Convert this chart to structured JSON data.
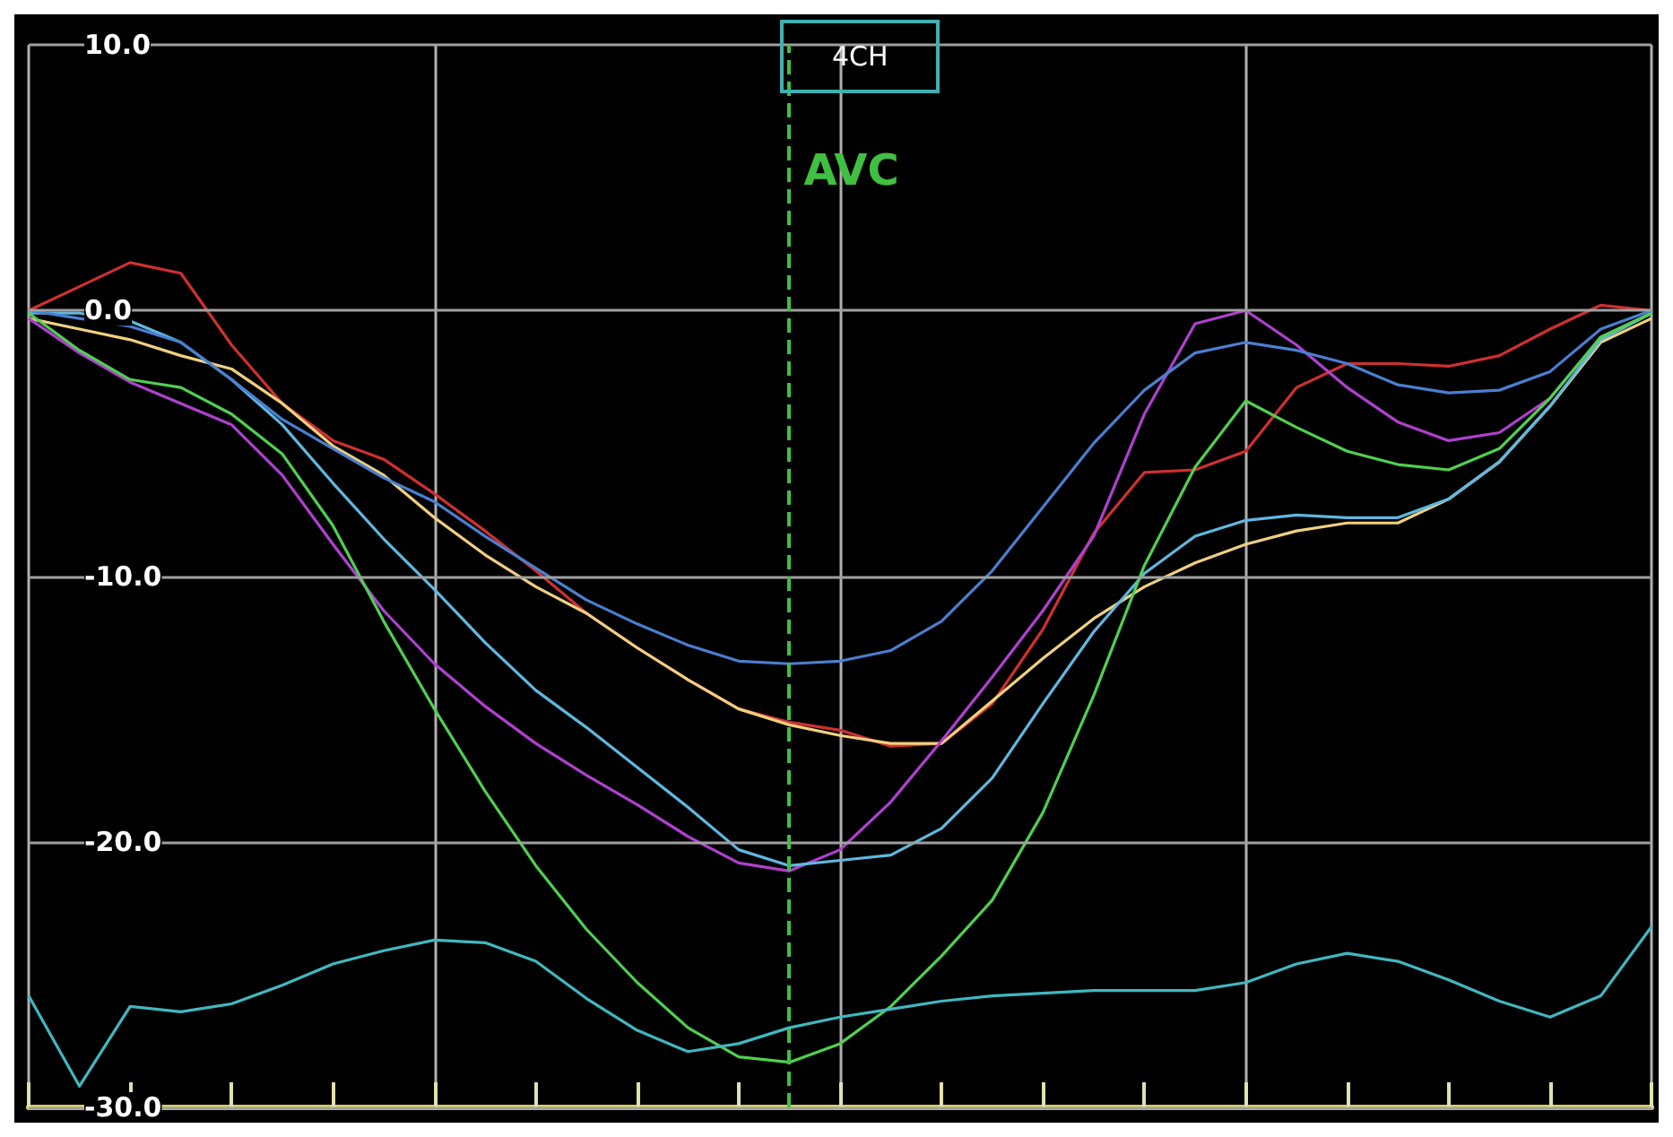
{
  "chart_data": {
    "type": "line",
    "title": "4CH",
    "categories": [
      null,
      null,
      null,
      null,
      null,
      null,
      null,
      null,
      null,
      null,
      null,
      null,
      null,
      null,
      null,
      null,
      null,
      null,
      null,
      null,
      null,
      null,
      null,
      null,
      null,
      null,
      null,
      null,
      null,
      null,
      null,
      null,
      null
    ],
    "ylim": [
      -30,
      10
    ],
    "yticks": [
      {
        "value": -30,
        "label": "-30.0"
      },
      {
        "value": -20,
        "label": "-20.0"
      },
      {
        "value": -10,
        "label": "-10.0"
      },
      {
        "value": 0,
        "label": "0.0"
      },
      {
        "value": 10,
        "label": "10.0"
      }
    ],
    "tick_labels": "y",
    "grid": true,
    "marker": "none",
    "line_style": "solid",
    "annotations": [
      "AVC"
    ],
    "series": [
      {
        "color": "#d03030",
        "values": [
          0,
          0.9,
          1.8,
          1.4,
          -1.3,
          -3.5,
          -4.9,
          -5.6,
          -6.9,
          -8.3,
          -9.8,
          -11.4,
          -12.7,
          -13.9,
          -15.0,
          -15.5,
          -15.8,
          -16.4,
          -16.3,
          -14.8,
          -12.0,
          -8.4,
          -6.1,
          -6.0,
          -5.3,
          -2.9,
          -2.0,
          -2.0,
          -2.1,
          -1.7,
          -0.7,
          0.2,
          0
        ]
      },
      {
        "color": "#f0d080",
        "values": [
          -0.3,
          -0.7,
          -1.1,
          -1.7,
          -2.2,
          -3.5,
          -5.1,
          -6.2,
          -7.8,
          -9.2,
          -10.4,
          -11.4,
          -12.7,
          -13.9,
          -15.0,
          -15.6,
          -16.0,
          -16.3,
          -16.3,
          -14.7,
          -13.1,
          -11.6,
          -10.4,
          -9.5,
          -8.8,
          -8.3,
          -8.0,
          -8.0,
          -7.1,
          -5.7,
          -3.6,
          -1.2,
          -0.3
        ]
      },
      {
        "color": "#b040d0",
        "values": [
          -0.3,
          -1.6,
          -2.7,
          -3.5,
          -4.3,
          -6.2,
          -8.8,
          -11.3,
          -13.3,
          -14.9,
          -16.3,
          -17.5,
          -18.6,
          -19.8,
          -20.8,
          -21.1,
          -20.3,
          -18.5,
          -16.2,
          -13.8,
          -11.3,
          -8.5,
          -3.9,
          -0.5,
          0,
          -1.3,
          -2.9,
          -4.2,
          -4.9,
          -4.6,
          -3.3,
          -1.0,
          -0.1
        ]
      },
      {
        "color": "#60b8e0",
        "values": [
          -0.1,
          -0.1,
          -0.4,
          -1.2,
          -2.6,
          -4.3,
          -6.5,
          -8.6,
          -10.5,
          -12.5,
          -14.3,
          -15.7,
          -17.2,
          -18.7,
          -20.3,
          -20.9,
          -20.7,
          -20.5,
          -19.5,
          -17.6,
          -14.8,
          -12.1,
          -9.9,
          -8.5,
          -7.9,
          -7.7,
          -7.8,
          -7.8,
          -7.1,
          -5.7,
          -3.6,
          -1.1,
          -0.1
        ]
      },
      {
        "color": "#50d050",
        "values": [
          -0.1,
          -1.5,
          -2.6,
          -2.9,
          -3.9,
          -5.4,
          -8.1,
          -11.7,
          -15.0,
          -18.1,
          -20.9,
          -23.3,
          -25.3,
          -27.0,
          -28.1,
          -28.3,
          -27.6,
          -26.2,
          -24.3,
          -22.2,
          -18.9,
          -14.5,
          -9.6,
          -5.9,
          -3.4,
          -4.4,
          -5.3,
          -5.8,
          -6.0,
          -5.2,
          -3.3,
          -1.0,
          -0.1
        ]
      },
      {
        "color": "#40b8c0",
        "values": [
          -25.8,
          -29.2,
          -26.2,
          -26.4,
          -26.1,
          -25.4,
          -24.6,
          -24.1,
          -23.7,
          -23.8,
          -24.5,
          -25.9,
          -27.1,
          -27.9,
          -27.6,
          -27.0,
          -26.6,
          -26.3,
          -26.0,
          -25.8,
          -25.7,
          -25.6,
          -25.6,
          -25.6,
          -25.3,
          -24.6,
          -24.2,
          -24.5,
          -25.2,
          -26.0,
          -26.6,
          -25.8,
          -23.2
        ]
      },
      {
        "color": "#4a7fd0",
        "values": [
          0,
          -0.3,
          -0.6,
          -1.2,
          -2.6,
          -4.1,
          -5.2,
          -6.3,
          -7.2,
          -8.5,
          -9.7,
          -10.9,
          -11.8,
          -12.6,
          -13.2,
          -13.3,
          -13.2,
          -12.8,
          -11.7,
          -9.8,
          -7.4,
          -5.0,
          -3.0,
          -1.6,
          -1.2,
          -1.5,
          -2.0,
          -2.8,
          -3.1,
          -3.0,
          -2.3,
          -0.7,
          0
        ]
      }
    ]
  }
}
